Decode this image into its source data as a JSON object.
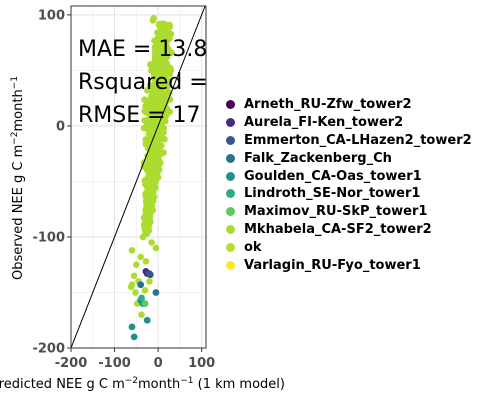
{
  "chart_data": {
    "type": "scatter",
    "xlabel_parts": [
      "Predicted NEE g C m",
      "−2",
      "month",
      "−1",
      " (1 km model)"
    ],
    "ylabel_parts": [
      "Observed NEE g C m",
      "−2",
      "month",
      "−1"
    ],
    "xlim": [
      -200,
      110
    ],
    "ylim": [
      -200,
      108
    ],
    "xticks": [
      -200,
      -100,
      0,
      100
    ],
    "xtick_labels": [
      "-200",
      "-100",
      "0",
      "100"
    ],
    "yticks": [
      -200,
      -100,
      0,
      100
    ],
    "ytick_labels": [
      "-200",
      "-100",
      "0",
      "100"
    ],
    "grid": true,
    "reference_line": "1:1",
    "annotations": [
      "MAE = 13.8",
      "Rsquared =",
      "RMSE = 17"
    ],
    "legend_position": "right",
    "series": [
      {
        "name": "Arneth_RU-Zfw_tower2",
        "color": "#440154",
        "x": [],
        "y": []
      },
      {
        "name": "Aurela_FI-Ken_tower2",
        "color": "#472d7b",
        "x": [
          -28,
          -25
        ],
        "y": [
          -131,
          -133
        ]
      },
      {
        "name": "Emmerton_CA-LHazen2_tower2",
        "color": "#3b528b",
        "x": [
          -20,
          -18
        ],
        "y": [
          -133,
          -134
        ]
      },
      {
        "name": "Falk_Zackenberg_Ch",
        "color": "#2c728e",
        "x": [
          -40,
          -5
        ],
        "y": [
          -143,
          -150
        ]
      },
      {
        "name": "Goulden_CA-Oas_tower1",
        "color": "#21918c",
        "x": [
          -60,
          -55,
          -40,
          -35,
          -25
        ],
        "y": [
          -181,
          -190,
          -157,
          -160,
          -175
        ]
      },
      {
        "name": "Lindroth_SE-Nor_tower1",
        "color": "#28ae80",
        "x": [
          -38
        ],
        "y": [
          -155
        ]
      },
      {
        "name": "Maximov_RU-SkP_tower1",
        "color": "#5ec962",
        "x": [
          -30
        ],
        "y": [
          -160
        ]
      },
      {
        "name": "Mkhabela_CA-SF2_tower2",
        "color": "#addc30",
        "x": [],
        "y": []
      },
      {
        "name": "ok",
        "color": "#b8e02b",
        "x": [],
        "y": []
      },
      {
        "name": "Varlagin_RU-Fyo_tower1",
        "color": "#fde725",
        "x": [],
        "y": []
      }
    ]
  }
}
